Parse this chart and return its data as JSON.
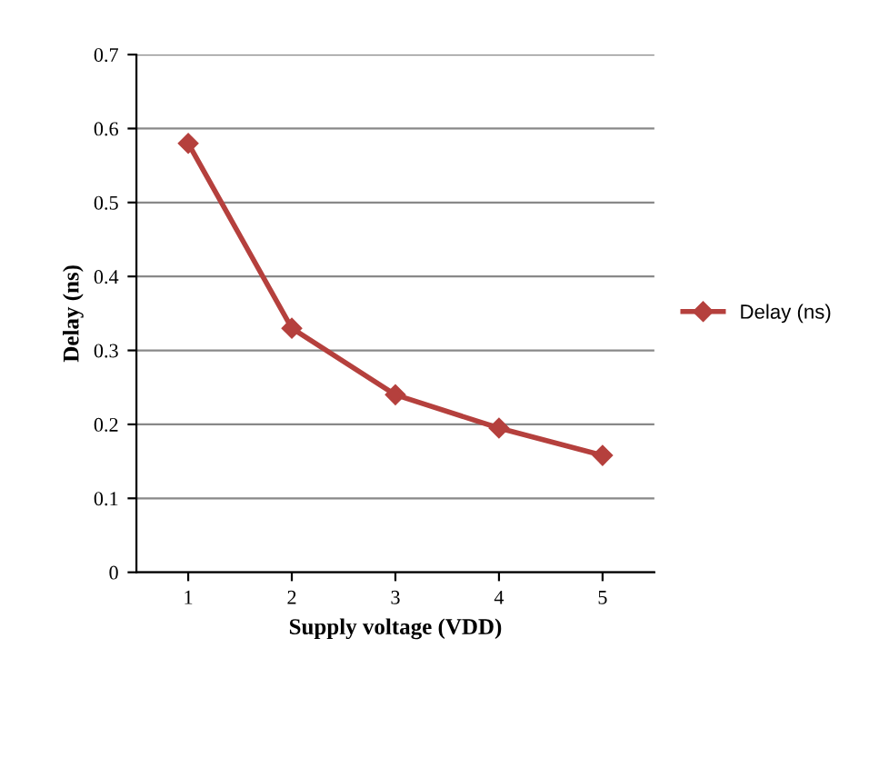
{
  "chart_data": {
    "type": "line",
    "xlabel": "Supply voltage (VDD)",
    "ylabel": "Delay (ns)",
    "categories": [
      "1",
      "2",
      "3",
      "4",
      "5"
    ],
    "series": [
      {
        "name": "Delay (ns)",
        "color": "#b5403d",
        "values": [
          0.58,
          0.33,
          0.24,
          0.195,
          0.158
        ]
      }
    ],
    "ylim": [
      0,
      0.7
    ],
    "yticks": [
      0,
      0.1,
      0.2,
      0.3,
      0.4,
      0.5,
      0.6,
      0.7
    ],
    "grid": "y",
    "legend": "right",
    "marker": "diamond",
    "line_style": "solid"
  }
}
